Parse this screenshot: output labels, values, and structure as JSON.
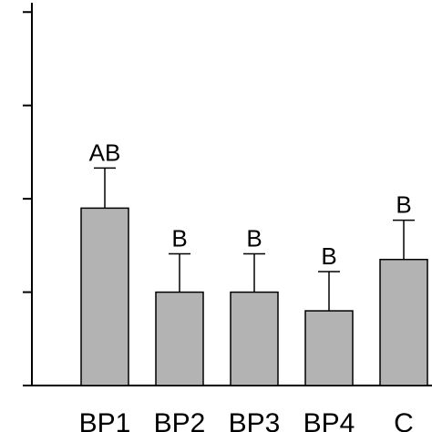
{
  "chart_data": {
    "type": "bar",
    "categories": [
      "BP1",
      "BP2",
      "BP3",
      "BP4",
      "C"
    ],
    "values": [
      1.9,
      1.0,
      1.0,
      0.8,
      1.35
    ],
    "error_upper": [
      2.33,
      1.41,
      1.41,
      1.22,
      1.77
    ],
    "significance_labels": [
      "AB",
      "B",
      "B",
      "B",
      "B"
    ],
    "ylim": [
      0,
      4.1
    ],
    "yticks": [
      0,
      1,
      2,
      3,
      4
    ],
    "title": "",
    "xlabel": "",
    "ylabel": "",
    "bar_color": "#b3b3b3",
    "grid": false
  }
}
